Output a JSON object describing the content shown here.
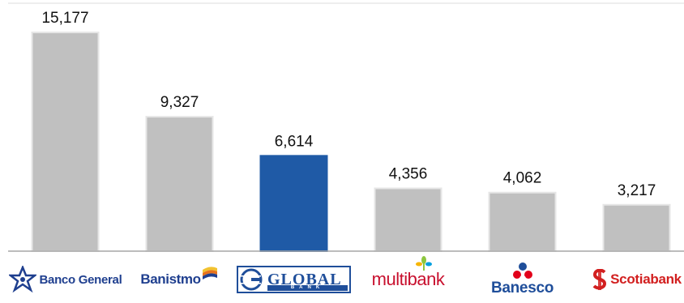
{
  "chart_data": {
    "type": "bar",
    "categories": [
      "Banco General",
      "Banistmo",
      "GLOBAL BANK",
      "multibank",
      "Banesco",
      "Scotiabank"
    ],
    "values": [
      15177,
      9327,
      6614,
      4356,
      4062,
      3217
    ],
    "value_labels": [
      "15,177",
      "9,327",
      "6,614",
      "4,356",
      "4,062",
      "3,217"
    ],
    "highlight_index": 2,
    "colors": {
      "default": "#c0c0c0",
      "highlight": "#1f5aa6",
      "bar_edge": "#e6e6e6",
      "axis": "#a6a6a6",
      "top_rule": "#dddddd"
    },
    "ylim": [
      0,
      15177
    ],
    "grid": false,
    "legend": "none"
  },
  "logos": {
    "banco_general": {
      "text": "Banco General",
      "icon": "star-icon",
      "color": "#1f3f8f"
    },
    "banistmo": {
      "text": "Banistmo",
      "icon": "flag-icon",
      "color": "#1f3f8f"
    },
    "global_bank": {
      "text": "GLOBAL",
      "subtext": "BANK",
      "icon": "globe-g-icon",
      "color": "#1f4e9a"
    },
    "multibank": {
      "text": "multibank",
      "icon": "sprout-icon",
      "color": "#c8102e"
    },
    "banesco": {
      "text": "Banesco",
      "icon": "dots-icon",
      "color": "#1f4e9a"
    },
    "scotiabank": {
      "text": "Scotiabank",
      "icon": "scotia-s-icon",
      "color": "#d21f1f"
    }
  }
}
